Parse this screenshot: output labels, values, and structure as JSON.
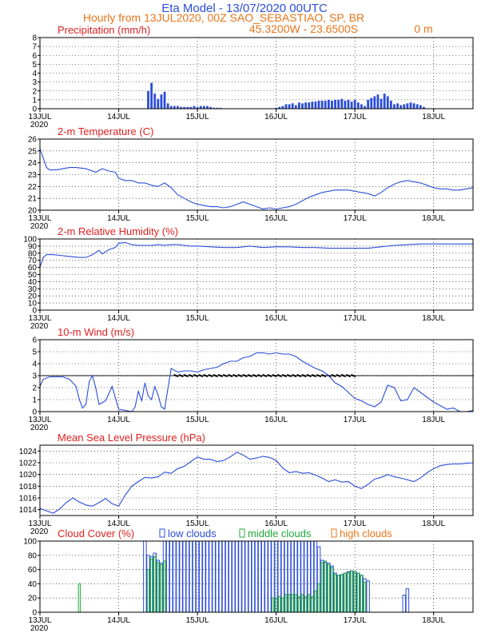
{
  "header": {
    "title": "Eta Model - 13/07/2020 00UTC",
    "subtitle": "Hourly from 13JUL2020, 00Z  SAO_SEBASTIAO, SP, BR",
    "coords": "45.3200W - 23.6500S",
    "elevation": "0   m"
  },
  "colors": {
    "line": "#2b4dd9",
    "bar": "#2b4dd9",
    "title": "#e01f1f",
    "header": "#2b4dd9",
    "subheader": "#e8751a",
    "low": "#2b4dd9",
    "middle": "#1fa83a",
    "high": "#e8751a"
  },
  "chart_data": [
    {
      "type": "bar",
      "title": "Precipitation (mm/h)",
      "xlabel": "",
      "ylabel": "",
      "ylim": [
        0,
        8
      ],
      "yticks": [
        "0",
        "1",
        "2",
        "3",
        "4",
        "5",
        "6",
        "7",
        "8"
      ],
      "x_ticks": [
        "13JUL",
        "14JUL",
        "15JUL",
        "16JUL",
        "17JUL",
        "18JUL"
      ],
      "year_label": "2020",
      "x_hours": [
        33,
        34,
        35,
        36,
        37,
        38,
        39,
        40,
        41,
        42,
        43,
        44,
        45,
        46,
        47,
        48,
        49,
        50,
        51,
        52,
        53,
        54,
        55,
        56,
        57,
        58,
        59,
        60,
        61,
        62,
        63,
        64,
        65,
        66,
        67,
        68,
        69,
        70,
        71,
        72,
        73,
        74,
        75,
        76,
        77,
        78,
        79,
        80,
        81,
        82,
        83,
        84,
        85,
        86,
        87,
        88,
        89,
        90,
        91,
        92,
        93,
        94,
        95,
        96,
        97,
        98,
        99,
        100,
        101,
        102,
        103,
        104,
        105,
        106,
        107,
        108,
        109,
        110,
        111,
        112,
        113,
        114,
        115,
        116,
        117
      ],
      "values": [
        2.0,
        2.9,
        1.7,
        1.1,
        1.6,
        1.9,
        0.6,
        0.3,
        0.3,
        0.3,
        0.2,
        0.2,
        0.2,
        0.2,
        0.3,
        0.2,
        0.3,
        0.3,
        0.3,
        0.2,
        0.1,
        0.1,
        0.1,
        0,
        0,
        0,
        0,
        0,
        0,
        0,
        0,
        0,
        0,
        0,
        0,
        0,
        0,
        0,
        0,
        0.1,
        0.2,
        0.3,
        0.5,
        0.5,
        0.6,
        0.4,
        0.7,
        0.6,
        0.7,
        0.7,
        0.8,
        0.8,
        0.9,
        0.9,
        0.9,
        1.0,
        0.9,
        1.0,
        1.0,
        1.1,
        0.9,
        1.0,
        0.8,
        1.0,
        0.7,
        0.5,
        0.3,
        1.0,
        1.2,
        1.4,
        1.6,
        1.1,
        1.7,
        1.4,
        0.9,
        0.5,
        0.6,
        0.4,
        0.5,
        0.6,
        0.7,
        0.6,
        0.5,
        0.4,
        0.2
      ]
    },
    {
      "type": "line",
      "title": "2-m Temperature (C)",
      "ylim": [
        20,
        26
      ],
      "yticks": [
        "20",
        "21",
        "22",
        "23",
        "24",
        "25",
        "26"
      ],
      "x_ticks": [
        "13JUL",
        "14JUL",
        "15JUL",
        "16JUL",
        "17JUL",
        "18JUL"
      ],
      "year_label": "2020",
      "x_hours": [
        0,
        1,
        2,
        3,
        5,
        7,
        9,
        11,
        14,
        17,
        19,
        21,
        23,
        24,
        26,
        28,
        30,
        32,
        34,
        36,
        38,
        40,
        42,
        44,
        46,
        48,
        50,
        52,
        54,
        56,
        58,
        60,
        62,
        64,
        66,
        68,
        70,
        72,
        74,
        76,
        78,
        80,
        82,
        84,
        86,
        88,
        90,
        92,
        94,
        96,
        98,
        100,
        102,
        104,
        106,
        108,
        110,
        112,
        114,
        116,
        118,
        120,
        122,
        124,
        126,
        128,
        130,
        132
      ],
      "values": [
        25.2,
        24.4,
        23.6,
        23.4,
        23.4,
        23.5,
        23.6,
        23.6,
        23.5,
        23.2,
        23.5,
        23.3,
        23.2,
        22.7,
        22.5,
        22.5,
        22.3,
        22.3,
        22.1,
        22.0,
        22.3,
        21.9,
        21.3,
        21.0,
        20.7,
        20.5,
        20.4,
        20.3,
        20.3,
        20.2,
        20.3,
        20.5,
        20.7,
        20.5,
        20.3,
        20.1,
        20.2,
        20.1,
        20.2,
        20.3,
        20.5,
        20.8,
        21.1,
        21.3,
        21.5,
        21.6,
        21.7,
        21.7,
        21.7,
        21.6,
        21.5,
        21.4,
        21.2,
        21.5,
        21.9,
        22.2,
        22.4,
        22.5,
        22.4,
        22.3,
        22.1,
        21.9,
        21.8,
        21.8,
        21.7,
        21.7,
        21.8,
        21.9
      ]
    },
    {
      "type": "line",
      "title": "2-m Relative Humidity (%)",
      "ylim": [
        0,
        100
      ],
      "yticks": [
        "0",
        "10",
        "20",
        "30",
        "40",
        "50",
        "60",
        "70",
        "80",
        "90",
        "100"
      ],
      "x_ticks": [
        "13JUL",
        "14JUL",
        "15JUL",
        "16JUL",
        "17JUL",
        "18JUL"
      ],
      "year_label": "2020",
      "x_hours": [
        0,
        1,
        2,
        4,
        6,
        8,
        10,
        12,
        14,
        16,
        18,
        19,
        21,
        23,
        24,
        26,
        28,
        30,
        32,
        34,
        36,
        38,
        40,
        42,
        44,
        46,
        48,
        52,
        56,
        60,
        64,
        68,
        72,
        76,
        80,
        84,
        88,
        92,
        96,
        100,
        104,
        108,
        112,
        116,
        120,
        124,
        128,
        132
      ],
      "values": [
        60,
        74,
        78,
        78,
        77,
        76,
        75,
        74,
        74,
        78,
        84,
        79,
        85,
        88,
        94,
        95,
        92,
        91,
        91,
        91,
        92,
        91,
        92,
        92,
        91,
        90,
        90,
        89,
        88,
        88,
        90,
        88,
        89,
        89,
        88,
        88,
        87,
        87,
        87,
        87,
        89,
        91,
        92,
        93,
        93,
        93,
        93,
        93
      ]
    },
    {
      "type": "line",
      "title": "10-m Wind (m/s)",
      "ylim": [
        0,
        6
      ],
      "yticks": [
        "0",
        "1",
        "2",
        "3",
        "4",
        "5",
        "6"
      ],
      "x_ticks": [
        "13JUL",
        "14JUL",
        "15JUL",
        "16JUL",
        "17JUL",
        "18JUL"
      ],
      "year_label": "2020",
      "x_hours": [
        0,
        1,
        3,
        5,
        7,
        9,
        11,
        12,
        13,
        14,
        15,
        16,
        17,
        18,
        20,
        22,
        24,
        26,
        28,
        29,
        30,
        31,
        32,
        33,
        34,
        35,
        36,
        37,
        38,
        40,
        42,
        44,
        46,
        48,
        50,
        52,
        54,
        56,
        58,
        60,
        62,
        64,
        66,
        68,
        70,
        72,
        74,
        76,
        78,
        80,
        82,
        84,
        86,
        88,
        90,
        92,
        94,
        96,
        98,
        100,
        102,
        104,
        106,
        108,
        110,
        112,
        114,
        116,
        118,
        120,
        122,
        124,
        126,
        128,
        130,
        132
      ],
      "values": [
        2.1,
        2.7,
        2.9,
        2.9,
        2.9,
        2.7,
        2.1,
        1.0,
        0.3,
        0.6,
        2.5,
        3.0,
        2.0,
        0.6,
        0.9,
        2.1,
        0.2,
        0.1,
        0.0,
        0.4,
        1.7,
        0.9,
        2.4,
        1.3,
        1.0,
        2.1,
        1.4,
        0.4,
        0.2,
        3.6,
        3.3,
        3.4,
        3.4,
        3.3,
        3.5,
        3.6,
        3.7,
        4.0,
        4.2,
        4.2,
        4.5,
        4.6,
        4.9,
        4.9,
        4.8,
        4.9,
        4.8,
        4.8,
        4.6,
        4.2,
        3.9,
        3.6,
        3.4,
        3.0,
        2.4,
        2.1,
        1.6,
        1.1,
        0.9,
        0.6,
        0.4,
        0.8,
        2.2,
        2.0,
        0.9,
        1.0,
        2.0,
        1.6,
        1.2,
        0.8,
        0.5,
        0.2,
        0.3,
        0.0,
        0.0,
        0.1
      ]
    },
    {
      "type": "line",
      "title": "Mean Sea Level Pressure (hPa)",
      "ylim": [
        1013,
        1025
      ],
      "yticks": [
        "1014",
        "1016",
        "1018",
        "1020",
        "1022",
        "1024"
      ],
      "x_ticks": [
        "13JUL",
        "14JUL",
        "15JUL",
        "16JUL",
        "17JUL",
        "18JUL"
      ],
      "year_label": "2020",
      "x_hours": [
        0,
        2,
        4,
        6,
        8,
        10,
        12,
        14,
        16,
        18,
        20,
        22,
        24,
        26,
        28,
        30,
        32,
        34,
        36,
        38,
        40,
        42,
        44,
        46,
        48,
        50,
        52,
        54,
        56,
        58,
        60,
        62,
        64,
        66,
        68,
        70,
        72,
        74,
        76,
        78,
        80,
        82,
        84,
        86,
        88,
        90,
        92,
        94,
        96,
        98,
        100,
        102,
        104,
        106,
        108,
        110,
        112,
        114,
        116,
        118,
        120,
        122,
        124,
        126,
        128,
        130,
        132
      ],
      "values": [
        1014.2,
        1013.8,
        1013.4,
        1014.1,
        1015.2,
        1016.0,
        1015.3,
        1014.8,
        1014.6,
        1015.2,
        1015.9,
        1015.0,
        1014.6,
        1016.5,
        1018.0,
        1018.8,
        1019.5,
        1019.4,
        1019.6,
        1020.4,
        1020.2,
        1021.0,
        1021.4,
        1022.2,
        1023.0,
        1022.6,
        1022.6,
        1022.2,
        1022.4,
        1023.0,
        1023.8,
        1023.3,
        1022.6,
        1022.8,
        1023.1,
        1022.9,
        1022.4,
        1021.1,
        1020.3,
        1020.5,
        1020.2,
        1020.3,
        1019.9,
        1019.4,
        1018.8,
        1019.1,
        1018.7,
        1018.8,
        1018.0,
        1017.6,
        1018.3,
        1019.2,
        1019.5,
        1020.0,
        1019.6,
        1019.4,
        1019.1,
        1018.8,
        1019.4,
        1020.3,
        1021.0,
        1021.5,
        1021.7,
        1021.8,
        1021.8,
        1021.9,
        1022.0
      ]
    },
    {
      "type": "bar",
      "title": "Cloud Cover (%)",
      "ylim": [
        0,
        100
      ],
      "yticks": [
        "0",
        "20",
        "40",
        "60",
        "80",
        "100"
      ],
      "x_ticks": [
        "13JUL",
        "14JUL",
        "15JUL",
        "16JUL",
        "17JUL",
        "18JUL"
      ],
      "year_label": "2020",
      "legend": [
        "low clouds",
        "middle clouds",
        "high clouds"
      ],
      "low": {
        "x_hours": [
          32,
          33,
          34,
          35,
          36,
          37,
          38,
          39,
          40,
          41,
          42,
          43,
          44,
          45,
          46,
          47,
          48,
          49,
          50,
          51,
          52,
          53,
          54,
          55,
          56,
          57,
          58,
          59,
          60,
          61,
          62,
          63,
          64,
          65,
          66,
          67,
          68,
          69,
          70,
          71,
          72,
          73,
          74,
          75,
          76,
          77,
          78,
          79,
          80,
          81,
          82,
          83,
          84,
          85,
          86,
          87,
          88,
          89,
          90,
          91,
          92,
          93,
          94,
          95,
          96,
          97,
          98,
          99,
          100,
          101,
          102,
          111,
          112
        ],
        "values": [
          100,
          80,
          78,
          83,
          73,
          69,
          100,
          100,
          100,
          100,
          100,
          100,
          100,
          100,
          100,
          100,
          100,
          100,
          100,
          100,
          100,
          100,
          100,
          100,
          100,
          100,
          100,
          100,
          100,
          100,
          100,
          100,
          100,
          100,
          100,
          100,
          100,
          100,
          100,
          100,
          100,
          100,
          100,
          100,
          100,
          100,
          100,
          100,
          100,
          100,
          100,
          100,
          100,
          92,
          73,
          70,
          69,
          65,
          55,
          52,
          53,
          55,
          57,
          58,
          57,
          55,
          52,
          47,
          44,
          0,
          0,
          24,
          33
        ]
      },
      "middle": {
        "x_hours": [
          12,
          33,
          34,
          35,
          36,
          37,
          38,
          71,
          72,
          73,
          74,
          75,
          76,
          77,
          78,
          79,
          80,
          81,
          82,
          83,
          84,
          85,
          86,
          87,
          88,
          89,
          90,
          91,
          92,
          93,
          94,
          95,
          96,
          97,
          98,
          99
        ],
        "values": [
          40,
          60,
          75,
          78,
          70,
          67,
          72,
          20,
          20,
          22,
          20,
          25,
          25,
          25,
          25,
          22,
          25,
          22,
          25,
          22,
          30,
          40,
          70,
          72,
          67,
          63,
          53,
          52,
          53,
          55,
          56,
          58,
          57,
          55,
          52,
          42
        ]
      },
      "high": {
        "x_hours": [],
        "values": []
      }
    }
  ]
}
